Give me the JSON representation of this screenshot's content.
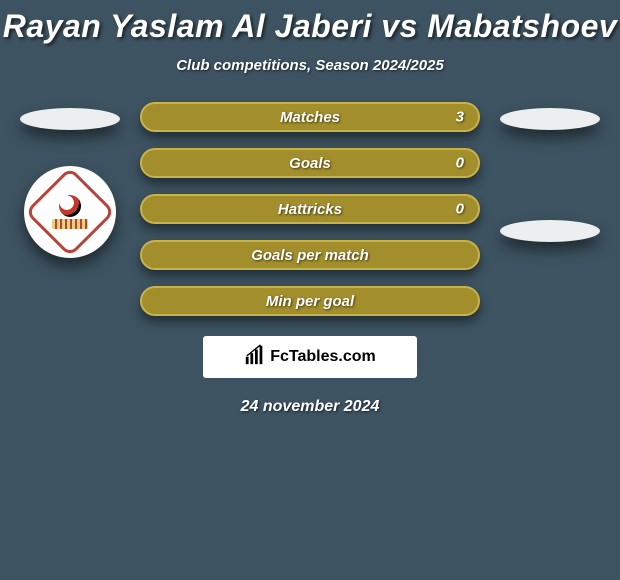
{
  "title": "Rayan Yaslam Al Jaberi vs Mabatshoev",
  "subtitle": "Club competitions, Season 2024/2025",
  "date": "24 november 2024",
  "background_color": "#3d5361",
  "text_color": "#ffffff",
  "ellipse_color": "#eceff0",
  "title_fontsize": 32,
  "subtitle_fontsize": 15,
  "stat_fontsize": 15,
  "date_fontsize": 16,
  "attribution": {
    "label": "FcTables.com",
    "icon": "bar-chart-icon",
    "box_bg": "#ffffff",
    "box_text": "#000000"
  },
  "pill_style": {
    "height": 30,
    "border_radius": 15,
    "border_width": 2,
    "gap": 16,
    "shadow": "0 6px 10px rgba(0,0,0,0.45)"
  },
  "stats": [
    {
      "label": "Matches",
      "value": "3",
      "fill": "#a28e2b",
      "border": "#c8b24a"
    },
    {
      "label": "Goals",
      "value": "0",
      "fill": "#a28e2b",
      "border": "#c8b24a"
    },
    {
      "label": "Hattricks",
      "value": "0",
      "fill": "#a28e2b",
      "border": "#c8b24a"
    },
    {
      "label": "Goals per match",
      "value": "",
      "fill": "#a28e2b",
      "border": "#c8b24a"
    },
    {
      "label": "Min per goal",
      "value": "",
      "fill": "#a28e2b",
      "border": "#c8b24a"
    }
  ],
  "left_player": {
    "avatar_placeholder": true,
    "club_badge": {
      "border_color": "#b6443b",
      "bg": "#ffffff"
    }
  },
  "right_player": {
    "avatar_placeholder_1": true,
    "avatar_placeholder_2": true
  }
}
